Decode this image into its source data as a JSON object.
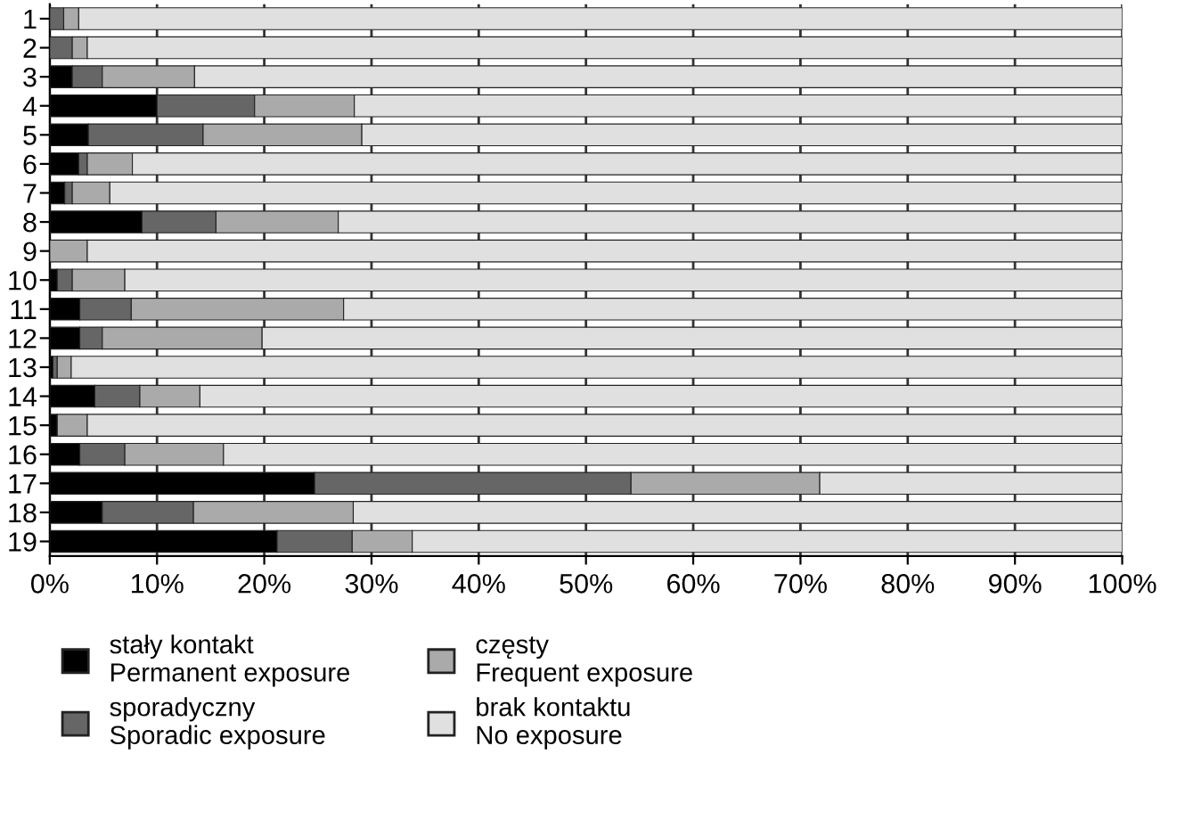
{
  "chart_data": {
    "type": "bar",
    "orientation": "horizontal",
    "stacked": true,
    "categories": [
      "1",
      "2",
      "3",
      "4",
      "5",
      "6",
      "7",
      "8",
      "9",
      "10",
      "11",
      "12",
      "13",
      "14",
      "15",
      "16",
      "17",
      "18",
      "19"
    ],
    "series": [
      {
        "name": "stały kontakt\nPermanent exposure",
        "color": "#000000",
        "values": [
          0,
          0,
          2.1,
          10.0,
          3.6,
          2.7,
          1.4,
          8.6,
          0,
          0.7,
          2.8,
          2.8,
          0.3,
          4.2,
          0.7,
          2.8,
          24.7,
          4.9,
          21.2
        ]
      },
      {
        "name": "sporadyczny\nSporadic exposure",
        "color": "#666666",
        "values": [
          1.3,
          2.1,
          2.8,
          9.1,
          10.7,
          0.8,
          0.7,
          6.9,
          0,
          1.4,
          4.8,
          2.1,
          0.4,
          4.2,
          0,
          4.2,
          29.5,
          8.5,
          7.0
        ]
      },
      {
        "name": "częsty\nFrequent exposure",
        "color": "#aaaaaa",
        "values": [
          1.4,
          1.4,
          8.6,
          9.3,
          14.8,
          4.2,
          3.5,
          11.4,
          3.5,
          4.9,
          19.8,
          14.9,
          1.3,
          5.6,
          2.8,
          9.2,
          17.6,
          14.9,
          5.6
        ]
      },
      {
        "name": "brak kontaktu\nNo exposure",
        "color": "#e0e0e0",
        "values": [
          97.3,
          96.5,
          86.5,
          71.6,
          70.9,
          92.3,
          94.4,
          73.1,
          96.5,
          93.0,
          72.6,
          80.2,
          98.0,
          86.0,
          96.5,
          83.8,
          28.2,
          71.7,
          66.2
        ]
      }
    ],
    "xlim": [
      0,
      100
    ],
    "xticks": [
      {
        "value": 0,
        "label": "0%"
      },
      {
        "value": 10,
        "label": "10%"
      },
      {
        "value": 20,
        "label": "20%"
      },
      {
        "value": 30,
        "label": "30%"
      },
      {
        "value": 40,
        "label": "40%"
      },
      {
        "value": 50,
        "label": "50%"
      },
      {
        "value": 60,
        "label": "60%"
      },
      {
        "value": 70,
        "label": "70%"
      },
      {
        "value": 80,
        "label": "80%"
      },
      {
        "value": 90,
        "label": "90%"
      },
      {
        "value": 100,
        "label": "100%"
      }
    ],
    "grid": "x",
    "legend": "bottom left"
  }
}
